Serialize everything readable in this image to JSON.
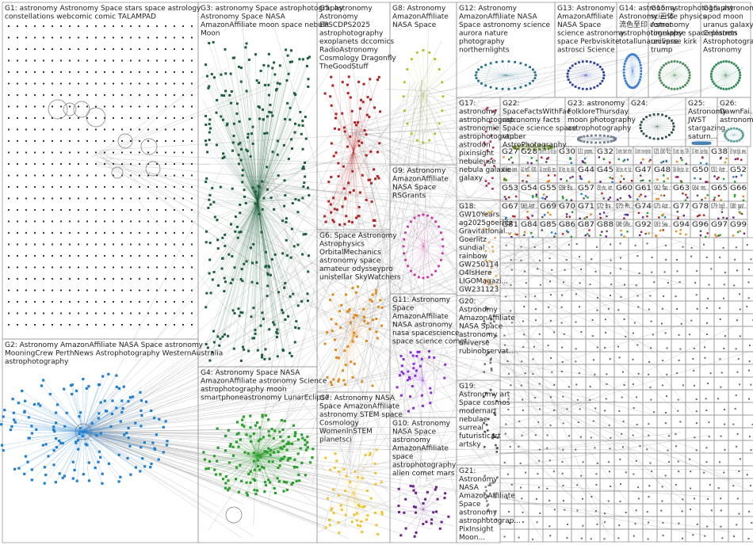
{
  "graph": {
    "groups": [
      {
        "id": "G1",
        "lines": [
          "G1: astronomy Astronomy Space stars space astrology",
          "constellations webcomic comic TALAMPAD"
        ],
        "color": "#222222",
        "pattern": "lattice"
      },
      {
        "id": "G2",
        "lines": [
          "G2: Astronomy AmazonAffiliate NASA Space astronomy",
          "MooningCrew PerthNews Astrophotography WesternAustralia",
          "astrophotography"
        ],
        "color": "#1f7fd1",
        "pattern": "hub"
      },
      {
        "id": "G3",
        "lines": [
          "G3: astronomy Space astrophotography",
          "Astronomy Space NASA",
          "AmazonAffiliate moon space nebula",
          "Moon"
        ],
        "color": "#1b5e3a",
        "pattern": "cloud"
      },
      {
        "id": "G4",
        "lines": [
          "G4: Astronomy Space NASA",
          "AmazonAffiliate astronomy Science",
          "astrophotography moon",
          "smartphoneastronomy LunarEclipse"
        ],
        "color": "#2ca02c",
        "pattern": "hub"
      },
      {
        "id": "G5",
        "lines": [
          "G5: astronomy",
          "Astronomy",
          "EPSCDPS2025",
          "astrophotography",
          "exoplanets dccomics",
          "RadioAstronomy",
          "Cosmology Dragonfly",
          "TheGoodStuff"
        ],
        "color": "#b22222",
        "pattern": "cloud"
      },
      {
        "id": "G6",
        "lines": [
          "G6: Space Astronomy",
          "Astrophysics",
          "OrbitalMechanics",
          "astronomy space",
          "amateur odysseypro",
          "unistellar SkyWatchers"
        ],
        "color": "#e08a1e",
        "pattern": "cloud"
      },
      {
        "id": "G7",
        "lines": [
          "G7: Astronomy NASA",
          "Space AmazonAffiliate",
          "astronomy STEM space",
          "Cosmology",
          "WomenInSTEM",
          "planetsci"
        ],
        "color": "#f2c12e",
        "pattern": "cloud"
      },
      {
        "id": "G8",
        "lines": [
          "G8: Astronomy",
          "AmazonAffiliate",
          "NASA Space"
        ],
        "color": "#a8c418",
        "pattern": "ring"
      },
      {
        "id": "G9",
        "lines": [
          "G9: Astronomy",
          "AmazonAffiliate",
          "NASA Space",
          "RSGrants"
        ],
        "color": "#d12fa8",
        "pattern": "ring"
      },
      {
        "id": "G10",
        "lines": [
          "G10: Astronomy",
          "NASA Space",
          "astronomy",
          "AmazonAffiliate",
          "space",
          "astrophotography",
          "alien comet mars"
        ],
        "color": "#6b1f8a",
        "pattern": "cloud"
      },
      {
        "id": "G11",
        "lines": [
          "G11: Astronomy",
          "Space",
          "AmazonAffiliate",
          "NASA astronomy",
          "nasa spacescience",
          "space science comet"
        ],
        "color": "#8a2be2",
        "pattern": "cloud"
      },
      {
        "id": "G12",
        "lines": [
          "G12: Astronomy",
          "AmazonAffiliate NASA",
          "Space astronomy science",
          "aurora nature",
          "photography",
          "northernlights"
        ],
        "color": "#1f6f8b",
        "pattern": "ring"
      },
      {
        "id": "G13",
        "lines": [
          "G13: Astronomy",
          "AmazonAffiliate",
          "NASA Space",
          "science astronomy",
          "space Perbviskite",
          "astrosci Science"
        ],
        "color": "#2a3f9e",
        "pattern": "ring"
      },
      {
        "id": "G14",
        "lines": [
          "G14: astronomy",
          "Astronomy 三体",
          "流色至印 comet",
          "astrophotography",
          "totallunareclipse"
        ],
        "color": "#3a7bd5",
        "pattern": "ring"
      },
      {
        "id": "G15",
        "lines": [
          "G15: astrophotography",
          "science physics",
          "Astronomy",
          "timelapse space planets",
          "universe kirk",
          "trump"
        ],
        "color": "#4a8c5a",
        "pattern": "ring"
      },
      {
        "id": "G16",
        "lines": [
          "G16: astronomy",
          "apod moon",
          "uranus galaxy",
          "Celestron",
          "Astrophotography",
          "Astronomy"
        ],
        "color": "#2e8b57",
        "pattern": "ring"
      },
      {
        "id": "G17",
        "lines": [
          "G17:",
          "astronomy",
          "astrophotograp...",
          "astronomie",
          "astrophotograp...",
          "astrodon",
          "pixinsight",
          "nebuleuse",
          "nebula galaxie",
          "galaxy"
        ],
        "color": "#b03060",
        "pattern": "column"
      },
      {
        "id": "G18",
        "lines": [
          "G18:",
          "GW10Years",
          "ag2025goerlitz",
          "Gravitational...",
          "Goerlitz",
          "sundial",
          "rainbow",
          "GW250114",
          "O4IsHere",
          "LIGOMagazi...",
          "GW231123"
        ],
        "color": "#e8a85a",
        "pattern": "column"
      },
      {
        "id": "G19",
        "lines": [
          "G19:",
          "Astronomy art",
          "Space cosmos",
          "modernart",
          "nebulae",
          "surreal",
          "futuristicart",
          "artsky"
        ],
        "color": "#555555",
        "pattern": "column"
      },
      {
        "id": "G20",
        "lines": [
          "G20:",
          "Astronomy",
          "AmazonAffiliate",
          "NASA Space",
          "astronomy",
          "universe",
          "rubinobservat..."
        ],
        "color": "#777777",
        "pattern": "column"
      },
      {
        "id": "G21",
        "lines": [
          "G21:",
          "Astronomy",
          "NASA",
          "AmazonAffiliate",
          "Space",
          "astronomy",
          "astrophotograp...",
          "PixInsight",
          "Moon..."
        ],
        "color": "#888888",
        "pattern": "column"
      },
      {
        "id": "G22",
        "lines": [
          "G22:",
          "SpaceFactsWithFae",
          "astronomy facts",
          "Space science space",
          "vtuber",
          "AstroPhotography..."
        ],
        "color": "#6b8e23",
        "pattern": "ring"
      },
      {
        "id": "G23",
        "lines": [
          "G23: astronomy",
          "FolkloreThursday",
          "moon photography",
          "astrophotography"
        ],
        "color": "#708090",
        "pattern": "ring"
      },
      {
        "id": "G24",
        "lines": [
          "G24:"
        ],
        "color": "#2f4f4f",
        "pattern": "ring"
      },
      {
        "id": "G25",
        "lines": [
          "G25:",
          "Astronomy",
          "JWST",
          "stargazing",
          "saturn..."
        ],
        "color": "#4682b4",
        "pattern": "ring"
      },
      {
        "id": "G26",
        "lines": [
          "G26:",
          "DawnFai...",
          "astronomy"
        ],
        "color": "#5f9ea0",
        "pattern": "ring"
      }
    ],
    "small_groups": [
      {
        "id": "G27",
        "text": "G27"
      },
      {
        "id": "G28",
        "text": "G28"
      },
      {
        "id": "G29",
        "text": "G29: astron... EPSC... SETILi... Astrob... Space..."
      },
      {
        "id": "G30",
        "text": "G30"
      },
      {
        "id": "G31",
        "text": "G31: promo..."
      },
      {
        "id": "G32",
        "text": "G32"
      },
      {
        "id": "G33",
        "text": "G33: witchem... thiwitcht... witchem..."
      },
      {
        "id": "G34",
        "text": "G34: astroh... moon eclipse blood..."
      },
      {
        "id": "G35",
        "text": "G35: EXO 엑소"
      },
      {
        "id": "G36",
        "text": "G36: astrob... indiega... STEAM..."
      },
      {
        "id": "G37",
        "text": "G37: Astron... Space Starga..."
      },
      {
        "id": "G38",
        "text": "G38"
      },
      {
        "id": "G39",
        "text": "G39: myart digital... werew..."
      },
      {
        "id": "G40",
        "text": "G40: Astro... lunare..."
      },
      {
        "id": "G41",
        "text": "G41: histST... KCMO..."
      },
      {
        "id": "G42",
        "text": "G42: science NASA... stem..."
      },
      {
        "id": "G43",
        "text": "G43: Astro... Ama... NASA..."
      },
      {
        "id": "G44",
        "text": "G44"
      },
      {
        "id": "G45",
        "text": "G45"
      },
      {
        "id": "G46",
        "text": "G46: Ener... Ast... Sust..."
      },
      {
        "id": "G47",
        "text": "G47"
      },
      {
        "id": "G48",
        "text": "G48"
      },
      {
        "id": "G49",
        "text": "G49: Allsky East... Astr..."
      },
      {
        "id": "G50",
        "text": "G50"
      },
      {
        "id": "G51",
        "text": "G51: Astr..."
      },
      {
        "id": "G52",
        "text": "G52"
      },
      {
        "id": "G53",
        "text": "G53"
      },
      {
        "id": "G54",
        "text": "G54"
      },
      {
        "id": "G55",
        "text": "G55"
      },
      {
        "id": "G56",
        "text": "G56: Blu..."
      },
      {
        "id": "G57",
        "text": "G57"
      },
      {
        "id": "G58",
        "text": "G58: pho... Astr..."
      },
      {
        "id": "G60",
        "text": "G60"
      },
      {
        "id": "G61",
        "text": "G61"
      },
      {
        "id": "G62",
        "text": "G62: flas..."
      },
      {
        "id": "G63",
        "text": "G63"
      },
      {
        "id": "G64",
        "text": "G64: res..."
      },
      {
        "id": "G65",
        "text": "G65"
      },
      {
        "id": "G66",
        "text": "G66"
      },
      {
        "id": "G67",
        "text": "G67"
      },
      {
        "id": "G68",
        "text": "G68: Astr..."
      },
      {
        "id": "G69",
        "text": "G69"
      },
      {
        "id": "G70",
        "text": "G70"
      },
      {
        "id": "G71",
        "text": "G71"
      },
      {
        "id": "G72",
        "text": "G72: Bra..."
      },
      {
        "id": "G73",
        "text": "G73: Ph..."
      },
      {
        "id": "G74",
        "text": "G74"
      },
      {
        "id": "G75",
        "text": "G75: Astr..."
      },
      {
        "id": "G77",
        "text": "G77"
      },
      {
        "id": "G78",
        "text": "G78"
      },
      {
        "id": "G79",
        "text": "G79: bg3..."
      },
      {
        "id": "G80",
        "text": "G80: gast..."
      },
      {
        "id": "G81",
        "text": "G81"
      },
      {
        "id": "G84",
        "text": "G84"
      },
      {
        "id": "G85",
        "text": "G85"
      },
      {
        "id": "G86",
        "text": "G86"
      },
      {
        "id": "G87",
        "text": "G87"
      },
      {
        "id": "G88",
        "text": "G88"
      },
      {
        "id": "G90",
        "text": "G90: Gifte..."
      },
      {
        "id": "G92",
        "text": "G92"
      },
      {
        "id": "G93",
        "text": "G93: Sea..."
      },
      {
        "id": "G94",
        "text": "G94"
      },
      {
        "id": "G96",
        "text": "G96"
      },
      {
        "id": "G97",
        "text": "G97"
      },
      {
        "id": "G99",
        "text": "G99"
      }
    ]
  }
}
